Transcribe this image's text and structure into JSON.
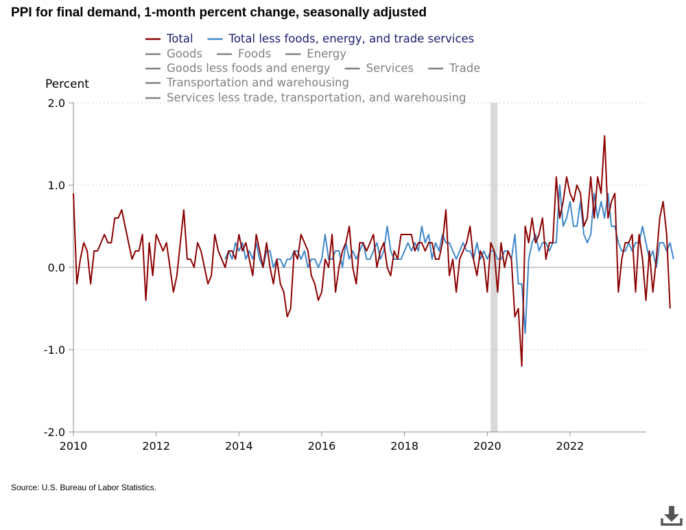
{
  "title": "PPI for final demand, 1-month percent change, seasonally adjusted",
  "source": "Source: U.S. Bureau of Labor Statistics.",
  "colors": {
    "total": "#8b0000",
    "core": "#3f87c8",
    "inactive": "#808080",
    "recession": "#d9d9d9",
    "grid": "#c8c8c8"
  },
  "icons": {
    "download": "download-icon"
  },
  "legend": [
    {
      "label": "Total",
      "active": true,
      "color": "#8b0000"
    },
    {
      "label": "Total less foods, energy, and trade services",
      "active": true,
      "color": "#3f87c8"
    },
    {
      "label": "Goods",
      "active": false
    },
    {
      "label": "Foods",
      "active": false
    },
    {
      "label": "Energy",
      "active": false
    },
    {
      "label": "Goods less foods and energy",
      "active": false
    },
    {
      "label": "Services",
      "active": false
    },
    {
      "label": "Trade",
      "active": false
    },
    {
      "label": "Transportation and warehousing",
      "active": false
    },
    {
      "label": "Services less trade, transportation, and warehousing",
      "active": false
    }
  ],
  "chart_data": {
    "type": "line",
    "title": "PPI for final demand, 1-month percent change, seasonally adjusted",
    "ylabel": "Percent",
    "xlabel": "",
    "ylim": [
      -2.0,
      2.0
    ],
    "yticks": [
      -2.0,
      -1.0,
      0.0,
      1.0,
      2.0
    ],
    "yticklabels": [
      "-2.0",
      "-1.0",
      "0.0",
      "1.0",
      "2.0"
    ],
    "xticks": [
      2010,
      2012,
      2014,
      2016,
      2018,
      2020,
      2022
    ],
    "xticklabels": [
      "2010",
      "2012",
      "2014",
      "2016",
      "2018",
      "2020",
      "2022"
    ],
    "xlim": [
      2010.0,
      2023.84
    ],
    "grid": "horizontal dotted",
    "recession": [
      2020.08,
      2020.25
    ],
    "series": [
      {
        "name": "Total",
        "start": 2010.0,
        "step_months": 1,
        "values": [
          0.9,
          -0.2,
          0.1,
          0.3,
          0.2,
          -0.2,
          0.2,
          0.2,
          0.3,
          0.4,
          0.3,
          0.3,
          0.6,
          0.6,
          0.7,
          0.5,
          0.3,
          0.1,
          0.2,
          0.2,
          0.4,
          -0.4,
          0.3,
          -0.1,
          0.4,
          0.3,
          0.2,
          0.3,
          0.0,
          -0.3,
          -0.1,
          0.3,
          0.7,
          0.1,
          0.1,
          0.0,
          0.3,
          0.2,
          0.0,
          -0.2,
          -0.1,
          0.4,
          0.2,
          0.1,
          0.0,
          0.2,
          0.2,
          0.1,
          0.4,
          0.2,
          0.3,
          0.1,
          -0.1,
          0.4,
          0.2,
          0.0,
          0.3,
          0.0,
          -0.2,
          0.1,
          -0.2,
          -0.3,
          -0.6,
          -0.5,
          0.2,
          0.1,
          0.4,
          0.3,
          0.2,
          -0.1,
          -0.2,
          -0.4,
          -0.3,
          0.1,
          0.0,
          0.4,
          -0.3,
          0.0,
          0.2,
          0.3,
          0.5,
          0.0,
          -0.2,
          0.3,
          0.3,
          0.2,
          0.3,
          0.4,
          0.0,
          0.2,
          0.3,
          0.0,
          -0.1,
          0.2,
          0.1,
          0.4,
          0.4,
          0.4,
          0.4,
          0.2,
          0.3,
          0.3,
          0.2,
          0.3,
          0.3,
          0.1,
          0.1,
          0.3,
          0.7,
          -0.1,
          0.1,
          -0.3,
          0.1,
          0.2,
          0.3,
          0.5,
          0.1,
          -0.1,
          0.2,
          0.1,
          -0.3,
          0.3,
          0.2,
          -0.3,
          0.3,
          0.0,
          0.2,
          0.1,
          -0.6,
          -0.5,
          -1.2,
          0.5,
          0.3,
          0.6,
          0.3,
          0.4,
          0.6,
          0.1,
          0.3,
          0.3,
          1.1,
          0.6,
          0.8,
          1.1,
          0.9,
          0.8,
          1.0,
          0.9,
          0.5,
          0.6,
          1.1,
          0.6,
          1.1,
          0.9,
          1.6,
          0.6,
          0.8,
          0.9,
          -0.3,
          0.1,
          0.3,
          0.3,
          0.4,
          -0.3,
          0.4,
          0.1,
          -0.4,
          0.2,
          -0.3,
          0.1,
          0.6,
          0.8,
          0.4,
          -0.5
        ]
      },
      {
        "name": "Total less foods, energy, and trade services",
        "start": 2013.667,
        "step_months": 1,
        "values": [
          0.1,
          0.2,
          0.1,
          0.3,
          0.2,
          0.3,
          0.1,
          0.2,
          0.1,
          0.3,
          0.1,
          0.0,
          0.2,
          0.2,
          0.0,
          0.1,
          0.1,
          0.0,
          0.1,
          0.1,
          0.2,
          0.2,
          0.1,
          0.2,
          0.0,
          0.1,
          0.1,
          0.0,
          0.1,
          0.4,
          0.1,
          0.1,
          0.2,
          0.2,
          0.0,
          0.3,
          0.1,
          0.2,
          0.1,
          0.2,
          0.3,
          0.1,
          0.1,
          0.2,
          0.3,
          0.1,
          0.2,
          0.5,
          0.2,
          0.1,
          0.1,
          0.1,
          0.2,
          0.3,
          0.2,
          0.3,
          0.2,
          0.5,
          0.3,
          0.4,
          0.1,
          0.3,
          0.2,
          0.4,
          0.3,
          0.3,
          0.2,
          0.1,
          0.2,
          0.3,
          0.2,
          0.2,
          0.1,
          0.3,
          0.1,
          0.2,
          0.1,
          0.2,
          0.2,
          0.1,
          0.1,
          0.2,
          0.2,
          0.1,
          0.4,
          -0.2,
          -0.2,
          -0.8,
          0.1,
          0.3,
          0.4,
          0.2,
          0.3,
          0.3,
          0.2,
          0.3,
          0.3,
          1.0,
          0.5,
          0.6,
          0.8,
          0.5,
          0.5,
          0.8,
          0.4,
          0.3,
          0.4,
          0.9,
          0.6,
          0.8,
          0.6,
          0.9,
          0.5,
          0.5,
          0.3,
          0.2,
          0.2,
          0.3,
          0.2,
          0.3,
          0.3,
          0.5,
          0.3,
          0.1,
          0.2,
          0.0,
          0.3,
          0.3,
          0.2,
          0.3,
          0.1
        ]
      }
    ]
  }
}
